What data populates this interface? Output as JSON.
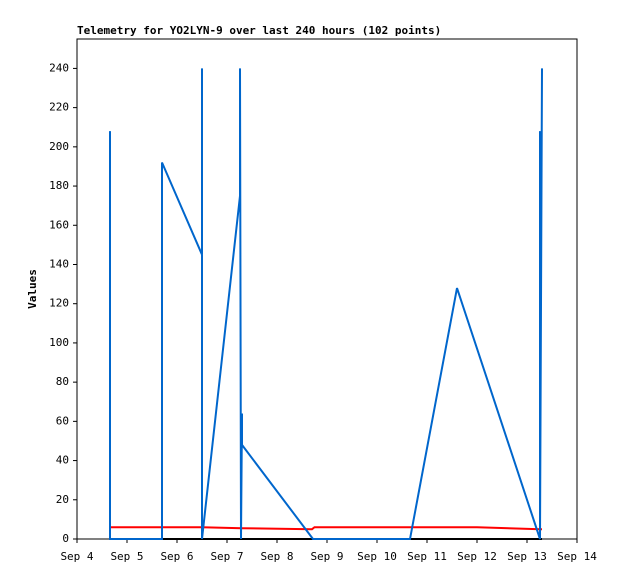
{
  "chart_data": {
    "type": "line",
    "title": "Telemetry for YO2LYN-9 over last 240 hours (102 points)",
    "y_label": "Values",
    "xlim": [
      4,
      14
    ],
    "xticks": [
      {
        "value": 4,
        "label": "Sep 4"
      },
      {
        "value": 5,
        "label": "Sep 5"
      },
      {
        "value": 6,
        "label": "Sep 6"
      },
      {
        "value": 7,
        "label": "Sep 7"
      },
      {
        "value": 8,
        "label": "Sep 8"
      },
      {
        "value": 9,
        "label": "Sep 9"
      },
      {
        "value": 10,
        "label": "Sep 10"
      },
      {
        "value": 11,
        "label": "Sep 11"
      },
      {
        "value": 12,
        "label": "Sep 12"
      },
      {
        "value": 13,
        "label": "Sep 13"
      },
      {
        "value": 14,
        "label": "Sep 14"
      }
    ],
    "ylim": [
      0,
      255
    ],
    "yticks": [
      0,
      20,
      40,
      60,
      80,
      100,
      120,
      140,
      160,
      180,
      200,
      220,
      240
    ],
    "series": [
      {
        "color": "#000000",
        "x": [
          4.66,
          13.3
        ],
        "values": [
          0,
          0
        ]
      },
      {
        "color": "#ff0000",
        "x": [
          4.66,
          6.5,
          7.3,
          8.7,
          8.75,
          12.0,
          13.26,
          13.3
        ],
        "values": [
          6,
          6,
          5.5,
          5,
          6,
          6,
          5,
          5
        ]
      },
      {
        "color": "#0066cc",
        "x": [
          4.66,
          4.66,
          4.66,
          5.7,
          5.7,
          6.5,
          6.5,
          6.5,
          7.26,
          7.26,
          7.28,
          7.3,
          7.3,
          8.72,
          10.66,
          11.6,
          13.26,
          13.26,
          13.26,
          13.3
        ],
        "values": [
          0,
          208,
          0,
          0,
          192,
          145,
          240,
          0,
          175,
          240,
          0,
          64,
          48,
          0,
          0,
          128,
          0,
          208,
          0,
          240
        ]
      }
    ]
  }
}
